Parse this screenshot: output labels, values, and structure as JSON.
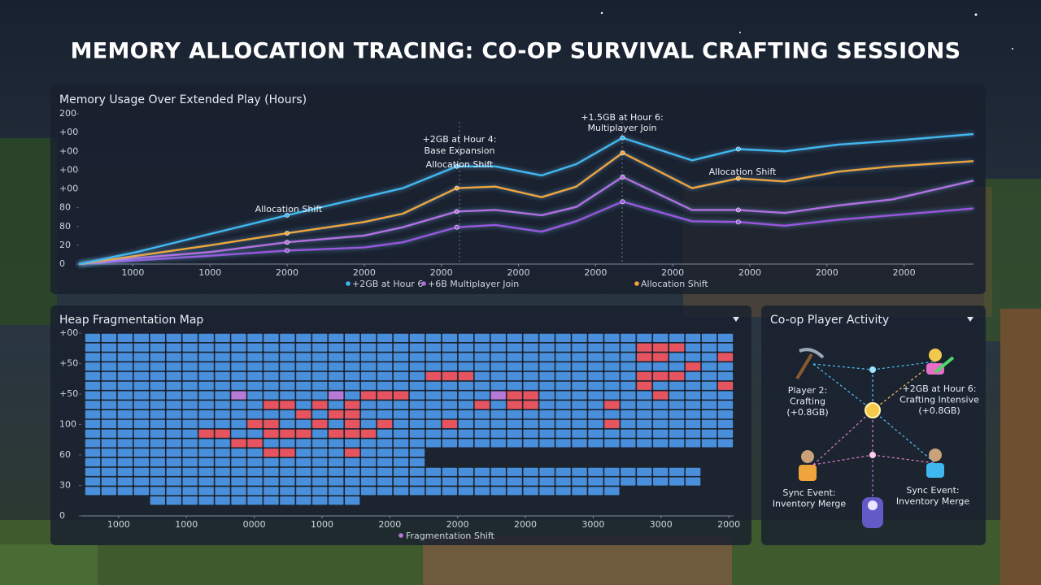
{
  "title": "MEMORY ALLOCATION TRACING: CO-OP SURVIVAL CRAFTING SESSIONS",
  "chart_data": [
    {
      "type": "line",
      "title": "Memory Usage Over Extended Play (Hours)",
      "x": [
        -0.7,
        0.05,
        1,
        2,
        3,
        3.5,
        4.2,
        4.7,
        5.3,
        5.75,
        6.35,
        7.25,
        7.85,
        8.45,
        9.15,
        9.85,
        10.9
      ],
      "xlim": [
        -0.7,
        10.9
      ],
      "xticks": [
        {
          "value": 0,
          "label": "1000"
        },
        {
          "value": 1,
          "label": "1000"
        },
        {
          "value": 2,
          "label": "2000"
        },
        {
          "value": 3,
          "label": "2000"
        },
        {
          "value": 4,
          "label": "2000"
        },
        {
          "value": 5,
          "label": "2000"
        },
        {
          "value": 6,
          "label": "2000"
        },
        {
          "value": 7,
          "label": "2000"
        },
        {
          "value": 8,
          "label": "2000"
        },
        {
          "value": 9,
          "label": "2000"
        },
        {
          "value": 10,
          "label": "2000"
        }
      ],
      "ylim": [
        0,
        200
      ],
      "yticks": [
        0,
        {
          "value": 25,
          "label": "20"
        },
        {
          "value": 50,
          "label": "80"
        },
        {
          "value": 75,
          "label": "80"
        },
        {
          "value": 100,
          "label": "+00"
        },
        {
          "value": 125,
          "label": "+00"
        },
        {
          "value": 150,
          "label": "+00"
        },
        {
          "value": 175,
          "label": "+00"
        },
        200
      ],
      "grid": false,
      "series": [
        {
          "name": "+2GB at Hour 6",
          "color": "#3fb8f0",
          "values": [
            0,
            16,
            40,
            65,
            89,
            101,
            130,
            130,
            118,
            133,
            168,
            138,
            153,
            150,
            159,
            164,
            173
          ]
        },
        {
          "name": "+6B Multiplayer Join",
          "color": "#b36fe0",
          "values": [
            0,
            8,
            16,
            29,
            38,
            49,
            70,
            72,
            65,
            76,
            116,
            72,
            72,
            68,
            78,
            86,
            111
          ]
        },
        {
          "name": "Allocation Shift",
          "color": "#f0a53c",
          "values": [
            0,
            11,
            25,
            41,
            56,
            67,
            101,
            103,
            89,
            103,
            148,
            101,
            114,
            110,
            123,
            130,
            137
          ]
        },
        {
          "color": "#9b55e0",
          "values": [
            0,
            5,
            11,
            18,
            22,
            29,
            49,
            52,
            43,
            57,
            83,
            57,
            56,
            51,
            59,
            65,
            74
          ]
        }
      ],
      "annotations": [
        "Allocation Shift",
        "+2GB at Hour 4:",
        "Base Expansion",
        "Allocation Shift",
        "+1.5GB at Hour 6:",
        "Multiplayer Join",
        "Allocation Shift"
      ]
    },
    {
      "type": "heatmap",
      "title": "Heap Fragmentation Map",
      "xlim": [
        -0.55,
        9.07
      ],
      "xticks": [
        {
          "value": 0,
          "label": "1000"
        },
        {
          "value": 1,
          "label": "1000"
        },
        {
          "value": 2,
          "label": "0000"
        },
        {
          "value": 3,
          "label": "1000"
        },
        {
          "value": 4,
          "label": "2000"
        },
        {
          "value": 5,
          "label": "2000"
        },
        {
          "value": 6,
          "label": "2000"
        },
        {
          "value": 7,
          "label": "3000"
        },
        {
          "value": 8,
          "label": "3000"
        },
        {
          "value": 9,
          "label": "2000"
        }
      ],
      "ylim": [
        0,
        180
      ],
      "yticks": [
        0,
        30,
        60,
        {
          "value": 90,
          "label": "100"
        },
        {
          "value": 120,
          "label": "+50"
        },
        {
          "value": 150,
          "label": "+50"
        },
        {
          "value": 180,
          "label": "+00"
        }
      ],
      "palette": [
        "#4a8fdc",
        "#e5545f",
        "#b77ad6"
      ],
      "legend": {
        "name": "Fragmentation Shift",
        "color": "#b77ad6"
      },
      "cells": [
        [
          1,
          1,
          1,
          1,
          1,
          1,
          1,
          1,
          1,
          1,
          1,
          1,
          1,
          1,
          1,
          1,
          1,
          1,
          1,
          1,
          1,
          1,
          1,
          1,
          1,
          1,
          1,
          1,
          1,
          1,
          1,
          1,
          1,
          1,
          1,
          1,
          1,
          1,
          1,
          1
        ],
        [
          1,
          1,
          1,
          1,
          1,
          1,
          1,
          1,
          1,
          1,
          1,
          1,
          1,
          1,
          1,
          1,
          1,
          1,
          1,
          1,
          1,
          1,
          1,
          1,
          1,
          1,
          1,
          1,
          1,
          1,
          1,
          1,
          1,
          1,
          2,
          2,
          2,
          1,
          1,
          1
        ],
        [
          1,
          1,
          1,
          1,
          1,
          1,
          1,
          1,
          1,
          1,
          1,
          1,
          1,
          1,
          1,
          1,
          1,
          1,
          1,
          1,
          1,
          1,
          1,
          1,
          1,
          1,
          1,
          1,
          1,
          1,
          1,
          1,
          1,
          1,
          2,
          2,
          1,
          1,
          1,
          2
        ],
        [
          1,
          1,
          1,
          1,
          1,
          1,
          1,
          1,
          1,
          1,
          1,
          1,
          1,
          1,
          1,
          1,
          1,
          1,
          1,
          1,
          1,
          1,
          1,
          1,
          1,
          1,
          1,
          1,
          1,
          1,
          1,
          1,
          1,
          1,
          1,
          1,
          1,
          2,
          1,
          1
        ],
        [
          1,
          1,
          1,
          1,
          1,
          1,
          1,
          1,
          1,
          1,
          1,
          1,
          1,
          1,
          1,
          1,
          1,
          1,
          1,
          1,
          1,
          2,
          2,
          2,
          1,
          1,
          1,
          1,
          1,
          1,
          1,
          1,
          1,
          1,
          2,
          2,
          2,
          1,
          1,
          1
        ],
        [
          1,
          1,
          1,
          1,
          1,
          1,
          1,
          1,
          1,
          1,
          1,
          1,
          1,
          1,
          1,
          1,
          1,
          1,
          1,
          1,
          1,
          1,
          1,
          1,
          1,
          1,
          1,
          1,
          1,
          1,
          1,
          1,
          1,
          1,
          2,
          1,
          1,
          1,
          1,
          2
        ],
        [
          1,
          1,
          1,
          1,
          1,
          1,
          1,
          1,
          1,
          3,
          1,
          1,
          1,
          1,
          1,
          3,
          1,
          2,
          2,
          2,
          1,
          1,
          1,
          1,
          1,
          3,
          2,
          2,
          1,
          1,
          1,
          1,
          1,
          1,
          1,
          2,
          1,
          1,
          1,
          1
        ],
        [
          1,
          1,
          1,
          1,
          1,
          1,
          1,
          1,
          1,
          1,
          1,
          2,
          2,
          1,
          2,
          1,
          2,
          1,
          1,
          1,
          1,
          1,
          1,
          1,
          2,
          1,
          2,
          2,
          1,
          1,
          1,
          1,
          2,
          1,
          1,
          1,
          1,
          1,
          1,
          1
        ],
        [
          1,
          1,
          1,
          1,
          1,
          1,
          1,
          1,
          1,
          1,
          1,
          1,
          1,
          2,
          1,
          2,
          2,
          1,
          1,
          1,
          1,
          1,
          1,
          1,
          1,
          1,
          1,
          1,
          1,
          1,
          1,
          1,
          1,
          1,
          1,
          1,
          1,
          1,
          1,
          1
        ],
        [
          1,
          1,
          1,
          1,
          1,
          1,
          1,
          1,
          1,
          1,
          2,
          2,
          1,
          1,
          2,
          1,
          2,
          1,
          2,
          1,
          1,
          1,
          2,
          1,
          1,
          1,
          1,
          1,
          1,
          1,
          1,
          1,
          2,
          1,
          1,
          1,
          1,
          1,
          1,
          1
        ],
        [
          1,
          1,
          1,
          1,
          1,
          1,
          1,
          2,
          2,
          1,
          1,
          2,
          2,
          2,
          1,
          2,
          2,
          2,
          1,
          1,
          1,
          1,
          1,
          1,
          1,
          1,
          1,
          1,
          1,
          1,
          1,
          1,
          1,
          1,
          1,
          1,
          1,
          1,
          1,
          1
        ],
        [
          1,
          1,
          1,
          1,
          1,
          1,
          1,
          1,
          1,
          2,
          2,
          1,
          1,
          1,
          1,
          1,
          1,
          1,
          1,
          1,
          1,
          1,
          1,
          1,
          1,
          1,
          1,
          1,
          1,
          1,
          1,
          1,
          1,
          1,
          1,
          1,
          1,
          1,
          1,
          1
        ],
        [
          1,
          1,
          1,
          1,
          1,
          1,
          1,
          1,
          1,
          1,
          1,
          2,
          2,
          1,
          1,
          1,
          2,
          1,
          1,
          1,
          1,
          0,
          0,
          0,
          0,
          0,
          0,
          0,
          0,
          0,
          0,
          0,
          0,
          0,
          0,
          0,
          0,
          0,
          0,
          0
        ],
        [
          1,
          1,
          1,
          1,
          1,
          1,
          1,
          1,
          1,
          1,
          1,
          1,
          1,
          1,
          1,
          1,
          1,
          1,
          1,
          1,
          1,
          0,
          0,
          0,
          0,
          0,
          0,
          0,
          0,
          0,
          0,
          0,
          0,
          0,
          0,
          0,
          0,
          0,
          0,
          0
        ],
        [
          1,
          1,
          1,
          1,
          1,
          1,
          1,
          1,
          1,
          1,
          1,
          1,
          1,
          1,
          1,
          1,
          1,
          1,
          1,
          1,
          1,
          1,
          1,
          1,
          1,
          1,
          1,
          1,
          1,
          1,
          1,
          1,
          1,
          1,
          1,
          1,
          1,
          1,
          0,
          0
        ],
        [
          1,
          1,
          1,
          1,
          1,
          1,
          1,
          1,
          1,
          1,
          1,
          1,
          1,
          1,
          1,
          1,
          1,
          1,
          1,
          1,
          1,
          1,
          1,
          1,
          1,
          1,
          1,
          1,
          1,
          1,
          1,
          1,
          1,
          1,
          1,
          1,
          1,
          1,
          0,
          0
        ],
        [
          1,
          1,
          1,
          1,
          1,
          1,
          1,
          1,
          1,
          1,
          1,
          1,
          1,
          1,
          1,
          1,
          1,
          1,
          1,
          1,
          1,
          1,
          1,
          1,
          1,
          1,
          1,
          1,
          1,
          1,
          1,
          1,
          1,
          0,
          0,
          0,
          0,
          0,
          0,
          0
        ],
        [
          0,
          0,
          0,
          0,
          1,
          1,
          1,
          1,
          1,
          1,
          1,
          1,
          1,
          1,
          1,
          1,
          1,
          0,
          0,
          0,
          0,
          0,
          0,
          0,
          0,
          0,
          0,
          0,
          0,
          0,
          0,
          0,
          0,
          0,
          0,
          0,
          0,
          0,
          0,
          0
        ]
      ]
    }
  ],
  "player_activity": {
    "title": "Co-op Player Activity",
    "nodes": [
      {
        "label": [
          "Player 2:",
          "Crafting",
          "(+0.8GB)"
        ]
      },
      {
        "label": [
          "+2GB at Hour 6:",
          "Crafting Intensive",
          "(+0.8GB)"
        ]
      },
      {
        "label": [
          "Sync Event:",
          "Inventory Merge"
        ]
      },
      {
        "label": [
          "Sync Event:",
          "Inventory Merge"
        ]
      }
    ]
  }
}
